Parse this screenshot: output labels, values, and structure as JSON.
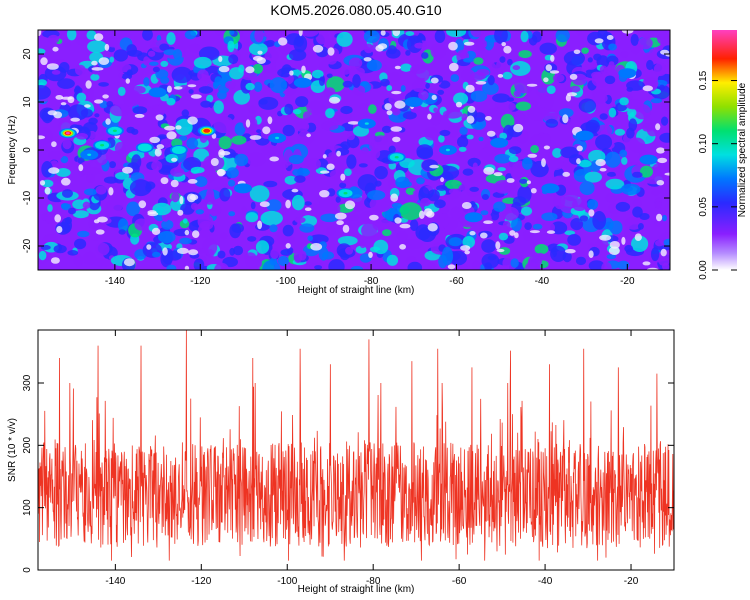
{
  "title": "KOM5.2026.080.05.40.G10",
  "colors": {
    "snr_line": "#ee3322",
    "axes": "#000000",
    "background": "#ffffff"
  },
  "chart_data": [
    {
      "type": "heatmap",
      "xlabel": "Height of straight line (km)",
      "ylabel": "Frequency (Hz)",
      "xlim": [
        -158,
        -10
      ],
      "ylim": [
        -25,
        25
      ],
      "xticks": [
        -140,
        -120,
        -100,
        -80,
        -60,
        -40,
        -20
      ],
      "yticks": [
        -20,
        -10,
        0,
        10,
        20
      ],
      "grid": false,
      "colorbar": {
        "label": "Normalized spectral amplitude",
        "range": [
          0,
          0.19
        ],
        "ticks": [
          0.0,
          0.05,
          0.1,
          0.15
        ],
        "tick_labels": [
          "0.00",
          "0.05",
          "0.10",
          "0.15"
        ],
        "colormap": "rainbow (white → violet → blue → cyan → green → yellow → red → magenta)"
      },
      "background_level": 0.02,
      "peaks": [
        {
          "x": -151,
          "y": 3.5,
          "z": 0.17
        },
        {
          "x": -118.5,
          "y": 4.0,
          "z": 0.16
        },
        {
          "x": -143,
          "y": 1.0,
          "z": 0.11
        },
        {
          "x": -140,
          "y": 4.0,
          "z": 0.1
        },
        {
          "x": -133,
          "y": 0.5,
          "z": 0.09
        },
        {
          "x": -125,
          "y": 0.0,
          "z": 0.09
        },
        {
          "x": -146,
          "y": -1.0,
          "z": 0.08
        },
        {
          "x": -86,
          "y": -9.0,
          "z": 0.1
        },
        {
          "x": -74,
          "y": -1.5,
          "z": 0.1
        },
        {
          "x": -102,
          "y": 2.5,
          "z": 0.08
        },
        {
          "x": -81,
          "y": 5.5,
          "z": 0.08
        },
        {
          "x": -62,
          "y": 0.0,
          "z": 0.08
        },
        {
          "x": -50,
          "y": 1.5,
          "z": 0.07
        },
        {
          "x": -30,
          "y": 3.0,
          "z": 0.07
        },
        {
          "x": -15,
          "y": -2.0,
          "z": 0.07
        },
        {
          "x": -110,
          "y": -8.0,
          "z": 0.07
        },
        {
          "x": -96,
          "y": 14.0,
          "z": 0.07
        },
        {
          "x": -56,
          "y": -14.0,
          "z": 0.07
        },
        {
          "x": -20,
          "y": 16.0,
          "z": 0.07
        },
        {
          "x": -130,
          "y": 12.0,
          "z": 0.07
        },
        {
          "x": -38,
          "y": -8.0,
          "z": 0.06
        },
        {
          "x": -70,
          "y": 10.0,
          "z": 0.06
        }
      ]
    },
    {
      "type": "line",
      "name": "",
      "xlabel": "Height of straight line (km)",
      "ylabel": "SNR (10 * v/v)",
      "xlim": [
        -158,
        -10
      ],
      "ylim": [
        0,
        385
      ],
      "xticks": [
        -140,
        -120,
        -100,
        -80,
        -60,
        -40,
        -20
      ],
      "yticks": [
        0,
        100,
        200,
        300
      ],
      "grid": false,
      "mean": 120,
      "typical_range": [
        15,
        300
      ],
      "peaks": [
        {
          "x": -123.5,
          "y": 385
        },
        {
          "x": -144,
          "y": 360
        },
        {
          "x": -134,
          "y": 360
        },
        {
          "x": -81,
          "y": 370
        },
        {
          "x": -97,
          "y": 355
        },
        {
          "x": -65,
          "y": 355
        },
        {
          "x": -48,
          "y": 352
        },
        {
          "x": -31,
          "y": 355
        },
        {
          "x": -108,
          "y": 340
        },
        {
          "x": -153,
          "y": 340
        },
        {
          "x": -90,
          "y": 330
        },
        {
          "x": -71,
          "y": 335
        },
        {
          "x": -57,
          "y": 325
        },
        {
          "x": -39,
          "y": 330
        },
        {
          "x": -23,
          "y": 325
        },
        {
          "x": -14,
          "y": 315
        }
      ]
    }
  ]
}
